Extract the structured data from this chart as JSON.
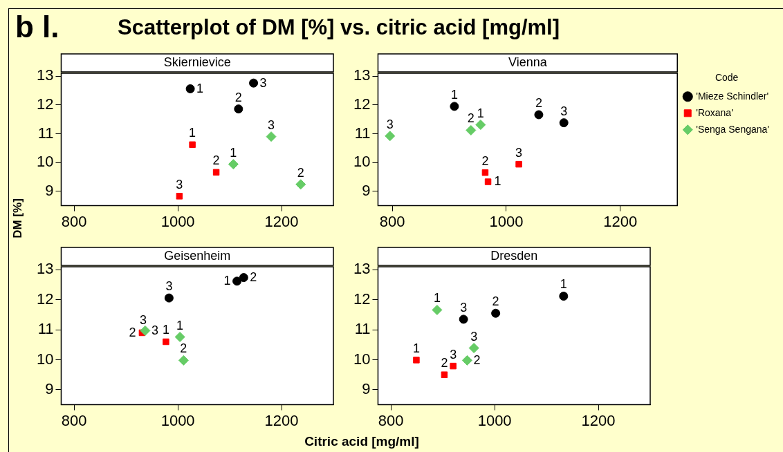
{
  "chart_data": [
    {
      "type": "scatter",
      "title": "Skiernievice",
      "ylabel": "DM [%]",
      "xlim": [
        775,
        1300
      ],
      "xticks": [
        800,
        1000,
        1200
      ],
      "ylim": [
        8.5,
        13.1
      ],
      "yticks": [
        9,
        10,
        11,
        12,
        13
      ],
      "grid": false,
      "legend": false,
      "annotations": [
        "b l.",
        "Scatterplot of DM [%] vs. citric acid [mg/ml]",
        {
          "text": "1",
          "x": 1024,
          "y": 12.56
        },
        {
          "text": "2",
          "x": 1117,
          "y": 11.86
        },
        {
          "text": "3",
          "x": 1146,
          "y": 12.76
        },
        {
          "text": "1",
          "x": 1028,
          "y": 10.62
        },
        {
          "text": "2",
          "x": 1074,
          "y": 9.66
        },
        {
          "text": "3",
          "x": 1003,
          "y": 8.83
        },
        {
          "text": "1",
          "x": 1107,
          "y": 9.94
        },
        {
          "text": "2",
          "x": 1237,
          "y": 9.24
        },
        {
          "text": "3",
          "x": 1180,
          "y": 10.9
        }
      ],
      "series": [
        {
          "color": "#000000",
          "marker": "circle",
          "x": [
            1024,
            1117,
            1146
          ],
          "values": [
            12.56,
            11.86,
            12.76
          ]
        },
        {
          "color": "#ff0000",
          "marker": "square",
          "x": [
            1028,
            1074,
            1003
          ],
          "values": [
            10.62,
            9.66,
            8.83
          ]
        },
        {
          "color": "#66cc66",
          "marker": "diamond",
          "x": [
            1107,
            1237,
            1180
          ],
          "values": [
            9.94,
            9.24,
            10.9
          ]
        }
      ]
    },
    {
      "type": "scatter",
      "title": "Vienna",
      "legend_title": "Code",
      "xlim": [
        775,
        1300
      ],
      "xticks": [
        800,
        1000,
        1200
      ],
      "ylim": [
        8.5,
        13.1
      ],
      "yticks": [
        9,
        10,
        11,
        12,
        13
      ],
      "grid": false,
      "legend": "right",
      "annotations": [
        {
          "text": "1",
          "x": 909,
          "y": 11.95
        },
        {
          "text": "2",
          "x": 1057,
          "y": 11.66
        },
        {
          "text": "3",
          "x": 1101,
          "y": 11.38
        },
        {
          "text": "2",
          "x": 963,
          "y": 9.65
        },
        {
          "text": "1",
          "x": 968,
          "y": 9.33
        },
        {
          "text": "3",
          "x": 1022,
          "y": 9.94
        },
        {
          "text": "1",
          "x": 955,
          "y": 11.31
        },
        {
          "text": "2",
          "x": 938,
          "y": 11.12
        },
        {
          "text": "3",
          "x": 796,
          "y": 10.92
        }
      ],
      "series": [
        {
          "name": "'Mieze Schindler'",
          "color": "#000000",
          "marker": "circle",
          "x": [
            909,
            1057,
            1101
          ],
          "values": [
            11.95,
            11.66,
            11.38
          ]
        },
        {
          "name": "'Roxana'",
          "color": "#ff0000",
          "marker": "square",
          "x": [
            968,
            963,
            1022
          ],
          "values": [
            9.33,
            9.65,
            9.94
          ]
        },
        {
          "name": "'Senga Sengana'",
          "color": "#66cc66",
          "marker": "diamond",
          "x": [
            955,
            938,
            796
          ],
          "values": [
            11.31,
            11.12,
            10.92
          ]
        }
      ]
    },
    {
      "type": "scatter",
      "title": "Geisenheim",
      "xlim": [
        775,
        1300
      ],
      "xticks": [
        800,
        1000,
        1200
      ],
      "ylim": [
        8.5,
        13.1
      ],
      "yticks": [
        9,
        10,
        11,
        12,
        13
      ],
      "grid": false,
      "legend": false,
      "annotations": [
        {
          "text": "1",
          "x": 1114,
          "y": 12.62
        },
        {
          "text": "2",
          "x": 1127,
          "y": 12.74
        },
        {
          "text": "3",
          "x": 983,
          "y": 12.06
        },
        {
          "text": "1",
          "x": 977,
          "y": 10.6
        },
        {
          "text": "2",
          "x": 931,
          "y": 10.9
        },
        {
          "text": "3",
          "x": 933,
          "y": 10.93
        },
        {
          "text": "1",
          "x": 1004,
          "y": 10.76
        },
        {
          "text": "2",
          "x": 1011,
          "y": 9.98
        },
        {
          "text": "3",
          "x": 937,
          "y": 10.97
        }
      ],
      "series": [
        {
          "color": "#000000",
          "marker": "circle",
          "x": [
            1114,
            1127,
            983
          ],
          "values": [
            12.62,
            12.74,
            12.06
          ]
        },
        {
          "color": "#ff0000",
          "marker": "square",
          "x": [
            977,
            931,
            null
          ],
          "values": [
            10.6,
            10.9,
            null
          ]
        },
        {
          "color": "#66cc66",
          "marker": "diamond",
          "x": [
            1004,
            1011,
            937
          ],
          "values": [
            10.76,
            9.98,
            10.97
          ]
        }
      ]
    },
    {
      "type": "scatter",
      "title": "Dresden",
      "xlabel": "Citric acid [mg/ml]",
      "xlim": [
        775,
        1300
      ],
      "xticks": [
        800,
        1000,
        1200
      ],
      "ylim": [
        8.5,
        13.1
      ],
      "yticks": [
        9,
        10,
        11,
        12,
        13
      ],
      "grid": false,
      "legend": false,
      "annotations": [
        {
          "text": "1",
          "x": 1133,
          "y": 12.12
        },
        {
          "text": "2",
          "x": 1002,
          "y": 11.55
        },
        {
          "text": "3",
          "x": 940,
          "y": 11.35
        },
        {
          "text": "1",
          "x": 849,
          "y": 9.99
        },
        {
          "text": "2",
          "x": 903,
          "y": 9.5
        },
        {
          "text": "3",
          "x": 920,
          "y": 9.79
        },
        {
          "text": "1",
          "x": 889,
          "y": 11.66
        },
        {
          "text": "2",
          "x": 947,
          "y": 9.98
        },
        {
          "text": "3",
          "x": 960,
          "y": 10.39
        }
      ],
      "series": [
        {
          "color": "#000000",
          "marker": "circle",
          "x": [
            1133,
            1002,
            940
          ],
          "values": [
            12.12,
            11.55,
            11.35
          ]
        },
        {
          "color": "#ff0000",
          "marker": "square",
          "x": [
            849,
            903,
            920
          ],
          "values": [
            9.99,
            9.5,
            9.79
          ]
        },
        {
          "color": "#66cc66",
          "marker": "diamond",
          "x": [
            889,
            947,
            960
          ],
          "values": [
            11.66,
            9.98,
            10.39
          ]
        }
      ]
    }
  ]
}
